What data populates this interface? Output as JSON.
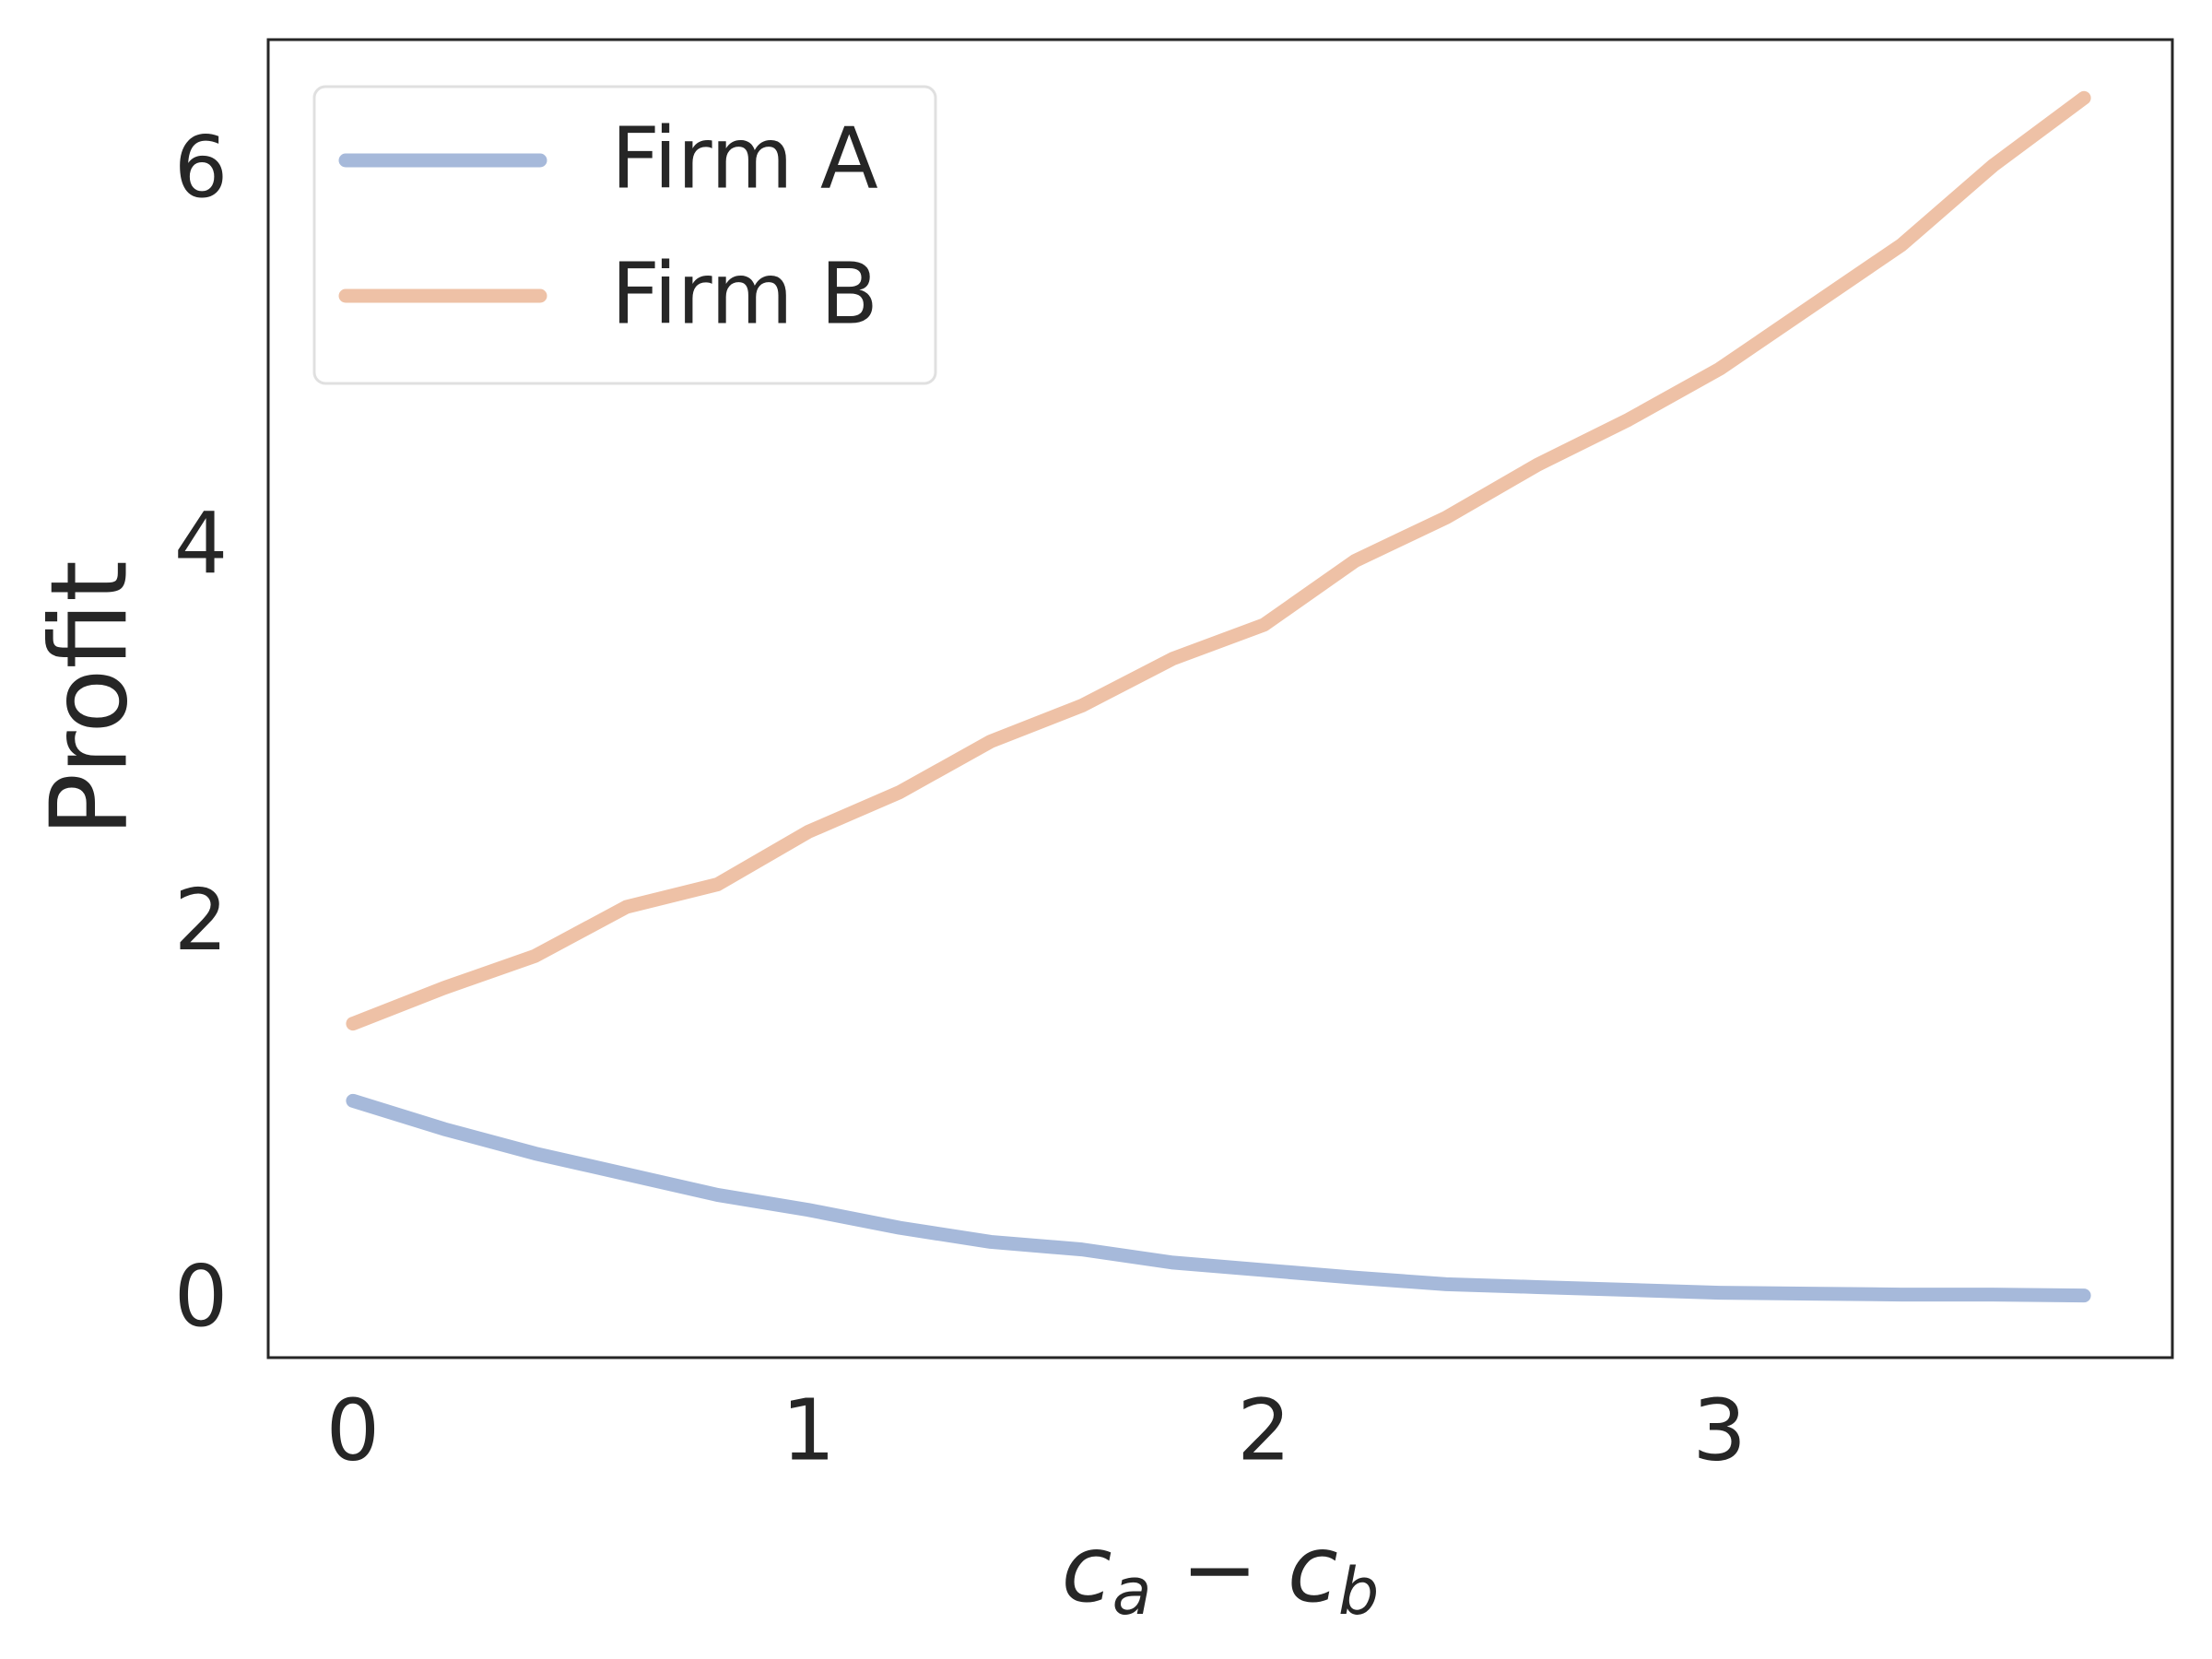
{
  "chart_data": {
    "type": "line",
    "x_label": "c_a − c_b",
    "y_label": "Profit",
    "x": [
      0,
      0.2,
      0.4,
      0.6,
      0.8,
      1.0,
      1.2,
      1.4,
      1.6,
      1.8,
      2.0,
      2.2,
      2.4,
      2.6,
      2.8,
      3.0,
      3.2,
      3.4,
      3.6,
      3.8
    ],
    "series": [
      {
        "name": "Firm A",
        "color": "#a6b9da",
        "values": [
          1.05,
          0.9,
          0.77,
          0.66,
          0.55,
          0.47,
          0.375,
          0.3,
          0.26,
          0.19,
          0.15,
          0.11,
          0.075,
          0.06,
          0.045,
          0.03,
          0.025,
          0.02,
          0.02,
          0.015
        ]
      },
      {
        "name": "Firm B",
        "color": "#eec1a6",
        "values": [
          1.46,
          1.65,
          1.82,
          2.08,
          2.2,
          2.48,
          2.69,
          2.96,
          3.15,
          3.4,
          3.58,
          3.92,
          4.15,
          4.43,
          4.67,
          4.94,
          5.27,
          5.6,
          6.02,
          6.38
        ]
      }
    ],
    "xlim": [
      -0.186,
      3.994
    ],
    "ylim": [
      -0.315,
      6.69
    ],
    "xticks": [
      0,
      1,
      2,
      3
    ],
    "yticks": [
      0,
      2,
      4,
      6
    ],
    "grid": false,
    "legend": "upper left"
  }
}
